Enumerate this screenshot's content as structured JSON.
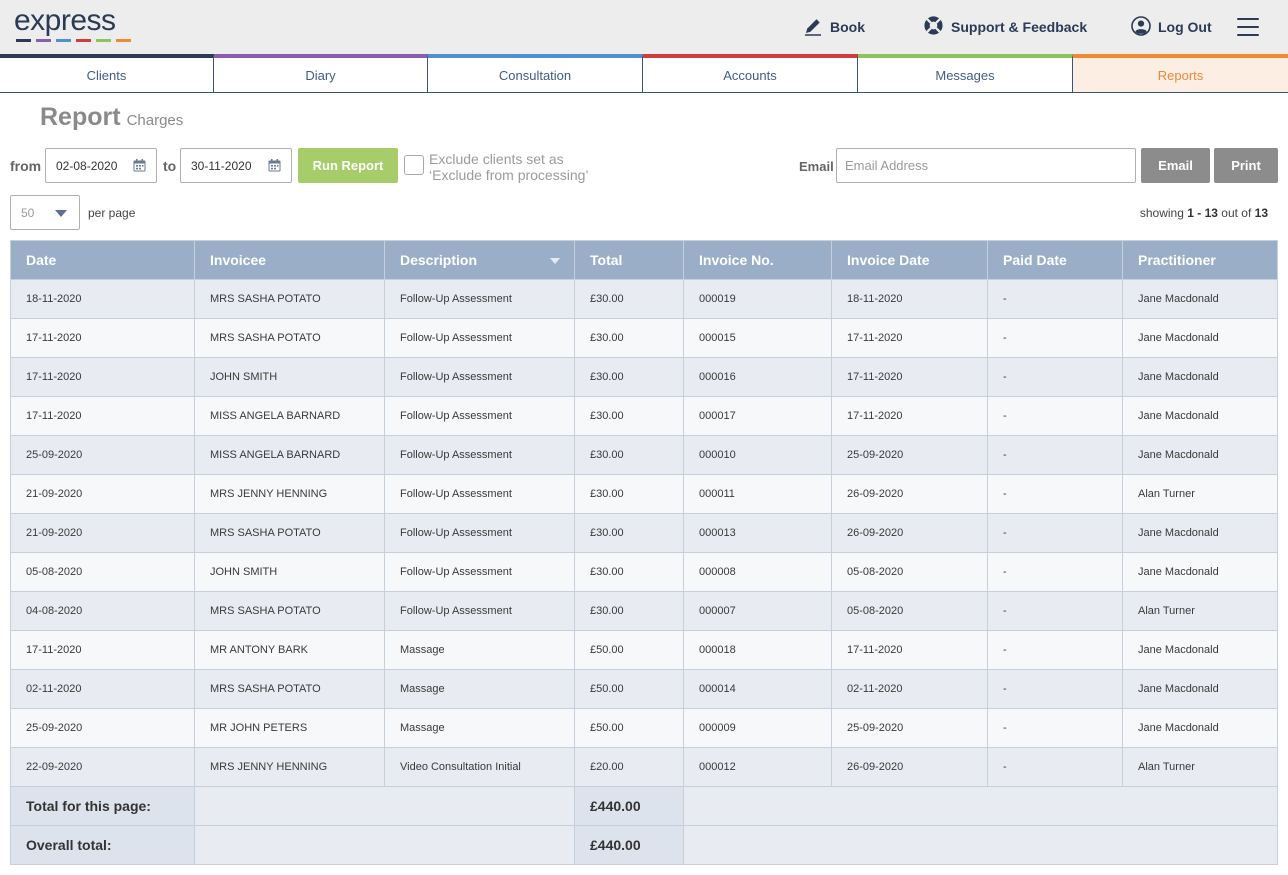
{
  "header": {
    "logo_text": "express",
    "logo_stripe_colors": [
      "#2b3a55",
      "#8a5db0",
      "#4f8fd6",
      "#d13c3c",
      "#8cc35a",
      "#f08a2e"
    ],
    "book_label": "Book",
    "support_label": "Support & Feedback",
    "logout_label": "Log Out"
  },
  "tabs": [
    {
      "label": "Clients",
      "color": "#2b3a55",
      "active": false
    },
    {
      "label": "Diary",
      "color": "#8a5db0",
      "active": false
    },
    {
      "label": "Consultation",
      "color": "#4f8fd6",
      "active": false
    },
    {
      "label": "Accounts",
      "color": "#d13c3c",
      "active": false
    },
    {
      "label": "Messages",
      "color": "#8cc35a",
      "active": false
    },
    {
      "label": "Reports",
      "color": "#f08a2e",
      "active": true
    }
  ],
  "page": {
    "title": "Report",
    "subtitle": "Charges"
  },
  "filters": {
    "from_label": "from",
    "from_value": "02-08-2020",
    "to_label": "to",
    "to_value": "30-11-2020",
    "run_label": "Run Report",
    "exclude_label": "Exclude clients set as ‘Exclude from processing’",
    "email_label": "Email",
    "email_placeholder": "Email Address",
    "email_button": "Email",
    "print_button": "Print"
  },
  "paging": {
    "per_page_value": "50",
    "per_page_label": "per page",
    "showing_prefix": "showing",
    "showing_range": "1 - 13",
    "showing_middle": "out of",
    "showing_total": "13"
  },
  "table": {
    "columns": [
      "Date",
      "Invoicee",
      "Description",
      "Total",
      "Invoice No.",
      "Invoice Date",
      "Paid Date",
      "Practitioner"
    ],
    "rows": [
      [
        "18-11-2020",
        "MRS SASHA POTATO",
        "Follow-Up Assessment",
        "£30.00",
        "000019",
        "18-11-2020",
        "-",
        "Jane Macdonald"
      ],
      [
        "17-11-2020",
        "MRS SASHA POTATO",
        "Follow-Up Assessment",
        "£30.00",
        "000015",
        "17-11-2020",
        "-",
        "Jane Macdonald"
      ],
      [
        "17-11-2020",
        "JOHN SMITH",
        "Follow-Up Assessment",
        "£30.00",
        "000016",
        "17-11-2020",
        "-",
        "Jane Macdonald"
      ],
      [
        "17-11-2020",
        "MISS ANGELA BARNARD",
        "Follow-Up Assessment",
        "£30.00",
        "000017",
        "17-11-2020",
        "-",
        "Jane Macdonald"
      ],
      [
        "25-09-2020",
        "MISS ANGELA BARNARD",
        "Follow-Up Assessment",
        "£30.00",
        "000010",
        "25-09-2020",
        "-",
        "Jane Macdonald"
      ],
      [
        "21-09-2020",
        "MRS JENNY HENNING",
        "Follow-Up Assessment",
        "£30.00",
        "000011",
        "26-09-2020",
        "-",
        "Alan Turner"
      ],
      [
        "21-09-2020",
        "MRS SASHA POTATO",
        "Follow-Up Assessment",
        "£30.00",
        "000013",
        "26-09-2020",
        "-",
        "Jane Macdonald"
      ],
      [
        "05-08-2020",
        "JOHN SMITH",
        "Follow-Up Assessment",
        "£30.00",
        "000008",
        "05-08-2020",
        "-",
        "Jane Macdonald"
      ],
      [
        "04-08-2020",
        "MRS SASHA POTATO",
        "Follow-Up Assessment",
        "£30.00",
        "000007",
        "05-08-2020",
        "-",
        "Alan Turner"
      ],
      [
        "17-11-2020",
        "MR ANTONY BARK",
        "Massage",
        "£50.00",
        "000018",
        "17-11-2020",
        "-",
        "Jane Macdonald"
      ],
      [
        "02-11-2020",
        "MRS SASHA POTATO",
        "Massage",
        "£50.00",
        "000014",
        "02-11-2020",
        "-",
        "Jane Macdonald"
      ],
      [
        "25-09-2020",
        "MR JOHN PETERS",
        "Massage",
        "£50.00",
        "000009",
        "25-09-2020",
        "-",
        "Jane Macdonald"
      ],
      [
        "22-09-2020",
        "MRS JENNY HENNING",
        "Video Consultation Initial",
        "£20.00",
        "000012",
        "26-09-2020",
        "-",
        "Alan Turner"
      ]
    ],
    "page_total_label": "Total for this page:",
    "page_total_value": "£440.00",
    "overall_total_label": "Overall total:",
    "overall_total_value": "£440.00"
  },
  "colors": {
    "header_bg": "#ededed",
    "accent_green": "#a7cc6a",
    "table_header": "#9aaec7",
    "active_tab_bg": "#fdeee3",
    "active_tab_text": "#e68a3a"
  }
}
